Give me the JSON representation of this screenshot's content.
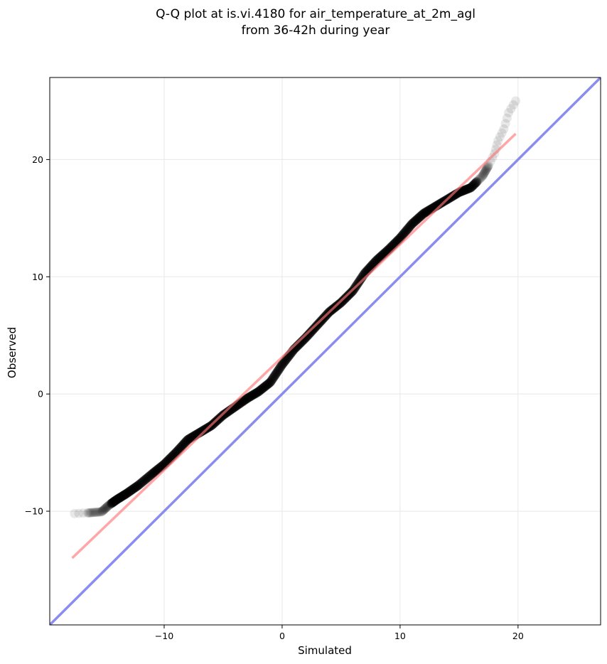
{
  "chart_data": {
    "type": "scatter",
    "title_line1": "Q-Q plot at is.vi.4180 for air_temperature_at_2m_agl",
    "title_line2": "from 36-42h during year",
    "xlabel": "Simulated",
    "ylabel": "Observed",
    "xlim": [
      -19.7,
      27.0
    ],
    "ylim": [
      -19.7,
      27.0
    ],
    "xticks": [
      -10,
      0,
      10,
      20
    ],
    "yticks": [
      -10,
      0,
      10,
      20
    ],
    "xtick_labels": [
      "−10",
      "0",
      "10",
      "20"
    ],
    "ytick_labels": [
      "−10",
      "0",
      "10",
      "20"
    ],
    "grid": true,
    "colors": {
      "points": "#000000",
      "fit_line": "#ff7777",
      "identity_line": "#8a8cf0",
      "grid": "#e8e8e8"
    },
    "quantile_curve": [
      [
        -17.6,
        -10.2
      ],
      [
        -16.5,
        -10.15
      ],
      [
        -15.3,
        -10.05
      ],
      [
        -14.7,
        -9.5
      ],
      [
        -14.0,
        -9.0
      ],
      [
        -13.2,
        -8.5
      ],
      [
        -12.2,
        -7.8
      ],
      [
        -11.0,
        -6.8
      ],
      [
        -10.0,
        -6.0
      ],
      [
        -9.0,
        -5.0
      ],
      [
        -8.0,
        -3.9
      ],
      [
        -7.0,
        -3.3
      ],
      [
        -6.0,
        -2.7
      ],
      [
        -5.0,
        -1.8
      ],
      [
        -4.0,
        -1.1
      ],
      [
        -3.0,
        -0.4
      ],
      [
        -2.0,
        0.2
      ],
      [
        -1.0,
        1.0
      ],
      [
        0.0,
        2.5
      ],
      [
        1.0,
        3.8
      ],
      [
        2.0,
        4.8
      ],
      [
        3.0,
        5.9
      ],
      [
        4.0,
        7.0
      ],
      [
        5.0,
        7.8
      ],
      [
        6.0,
        8.8
      ],
      [
        7.0,
        10.3
      ],
      [
        8.0,
        11.4
      ],
      [
        9.0,
        12.3
      ],
      [
        10.0,
        13.3
      ],
      [
        11.0,
        14.5
      ],
      [
        12.0,
        15.4
      ],
      [
        13.0,
        16.0
      ],
      [
        14.0,
        16.6
      ],
      [
        15.0,
        17.2
      ],
      [
        16.0,
        17.6
      ],
      [
        17.0,
        18.6
      ],
      [
        17.5,
        19.5
      ],
      [
        18.0,
        20.5
      ],
      [
        18.3,
        21.6
      ],
      [
        18.8,
        22.6
      ],
      [
        19.2,
        24.0
      ],
      [
        19.8,
        25.0
      ]
    ],
    "fit_line": [
      [
        -17.8,
        -14.0
      ],
      [
        19.8,
        22.2
      ]
    ],
    "identity_line": [
      [
        -19.7,
        -19.7
      ],
      [
        27.0,
        27.0
      ]
    ]
  }
}
